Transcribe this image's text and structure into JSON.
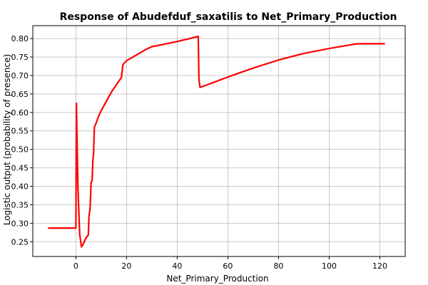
{
  "chart_data": {
    "type": "line",
    "title": "Response of Abudefduf_saxatilis to Net_Primary_Production",
    "xlabel": "Net_Primary_Production",
    "ylabel": "Logistic output (probability of presence)",
    "xlim": [
      -17,
      130
    ],
    "ylim": [
      0.21,
      0.835
    ],
    "x_ticks": [
      0,
      20,
      40,
      60,
      80,
      100,
      120
    ],
    "x_tick_labels": [
      "0",
      "20",
      "40",
      "60",
      "80",
      "100",
      "120"
    ],
    "y_ticks": [
      0.25,
      0.3,
      0.35,
      0.4,
      0.45,
      0.5,
      0.55,
      0.6,
      0.65,
      0.7,
      0.75,
      0.8
    ],
    "y_tick_labels": [
      "0.25",
      "0.30",
      "0.35",
      "0.40",
      "0.45",
      "0.50",
      "0.55",
      "0.60",
      "0.65",
      "0.70",
      "0.75",
      "0.80"
    ],
    "grid": true,
    "series_color": "#ff0000",
    "series": [
      {
        "x": [
          -11,
          -8,
          -4,
          0,
          0.2,
          0.8,
          1.5,
          2.2,
          3,
          3.8,
          4.5,
          4.9,
          5.2,
          5.6,
          6,
          6.4,
          6.7,
          7,
          7.3,
          7.6,
          8.2,
          9,
          10,
          12,
          14,
          16,
          17.5,
          18,
          18.5,
          19,
          20,
          22,
          25,
          28,
          30,
          35,
          40,
          45,
          48.3,
          48.6,
          49,
          50,
          55,
          60,
          70,
          80,
          90,
          100,
          110,
          112,
          115,
          120,
          122
        ],
        "y": [
          0.287,
          0.287,
          0.287,
          0.287,
          0.625,
          0.4,
          0.27,
          0.236,
          0.245,
          0.258,
          0.265,
          0.268,
          0.32,
          0.34,
          0.41,
          0.415,
          0.47,
          0.49,
          0.56,
          0.565,
          0.575,
          0.59,
          0.605,
          0.63,
          0.655,
          0.675,
          0.69,
          0.695,
          0.728,
          0.733,
          0.74,
          0.748,
          0.76,
          0.772,
          0.778,
          0.785,
          0.792,
          0.8,
          0.806,
          0.69,
          0.668,
          0.67,
          0.683,
          0.696,
          0.72,
          0.742,
          0.76,
          0.773,
          0.785,
          0.786,
          0.786,
          0.786,
          0.786
        ]
      }
    ]
  }
}
